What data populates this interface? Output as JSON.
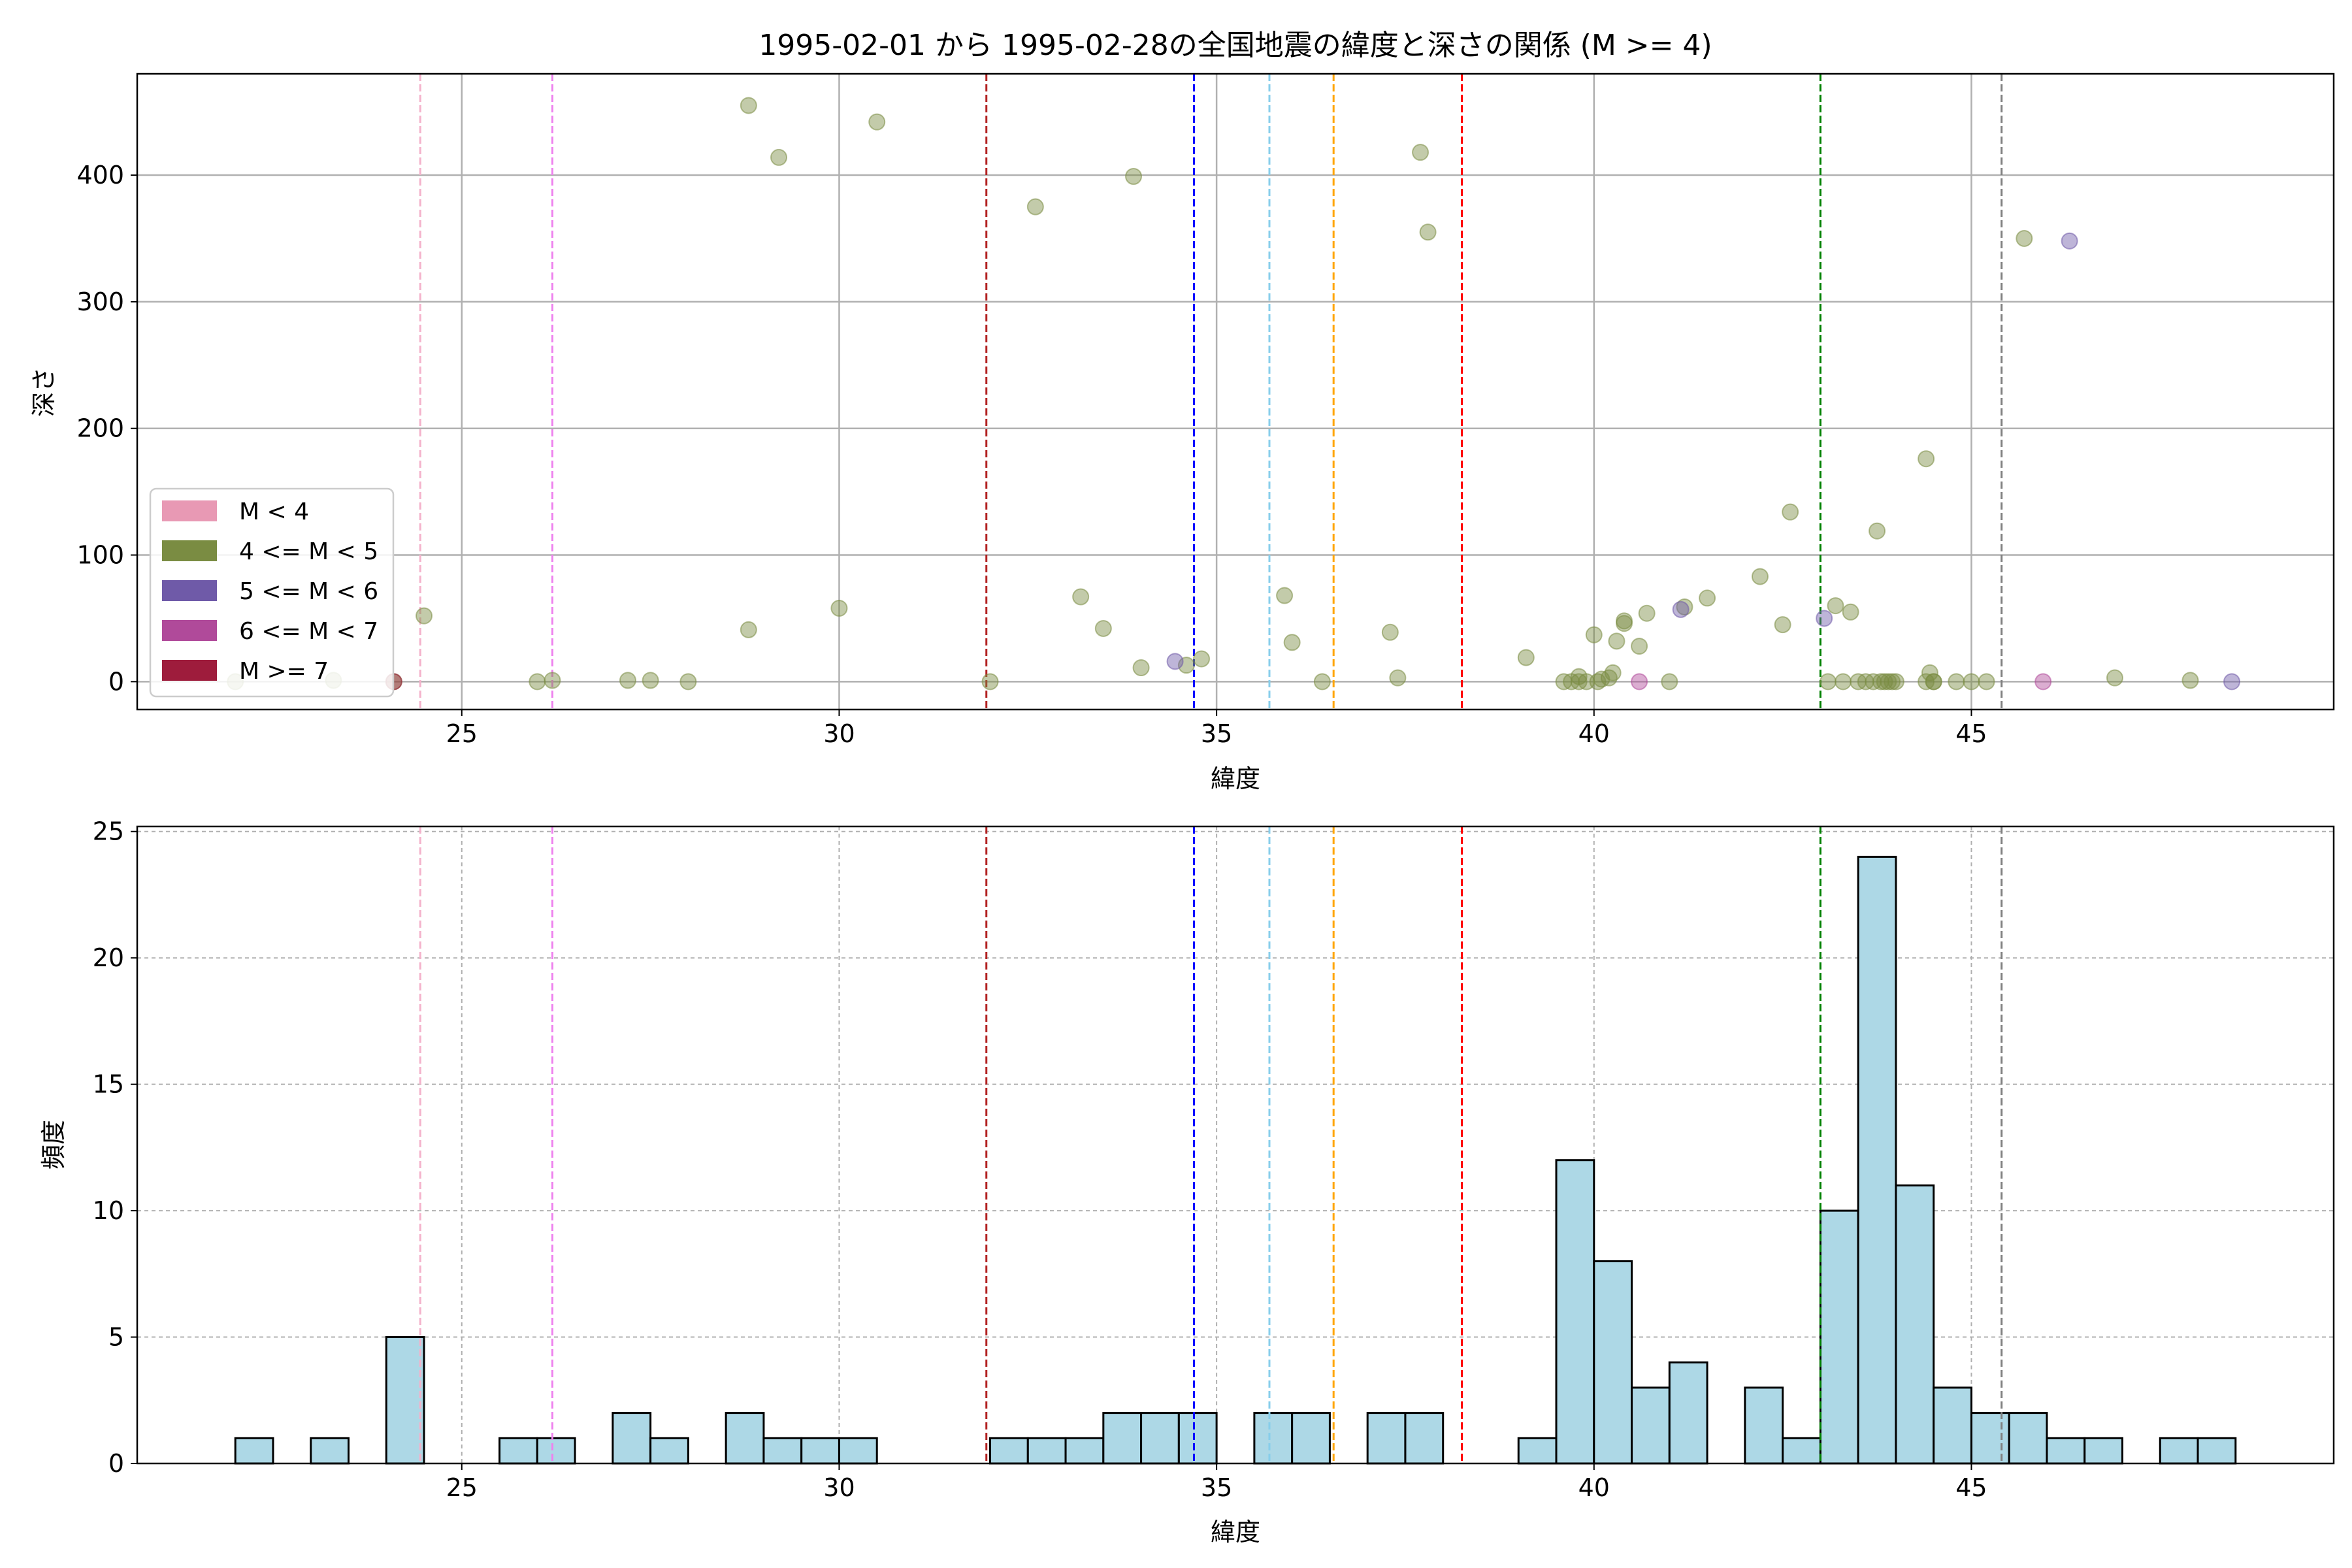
{
  "chart_data": [
    {
      "type": "scatter",
      "title": "1995-02-01 から 1995-02-28の全国地震の緯度と深さの関係 (M >= 4)",
      "xlabel": "緯度",
      "ylabel": "深さ",
      "xlim": [
        20.7,
        49.8
      ],
      "ylim": [
        480,
        -22
      ],
      "y_inverted": true,
      "xticks": [
        25,
        30,
        35,
        40,
        45
      ],
      "yticks": [
        0,
        100,
        200,
        300,
        400
      ],
      "grid": true,
      "legend_position": "lower-left",
      "legend": [
        {
          "label": "M < 4",
          "color": "#e899b4"
        },
        {
          "label": "4 <= M < 5",
          "color": "#7a8c42"
        },
        {
          "label": "5 <= M < 6",
          "color": "#6f5aa8"
        },
        {
          "label": "6 <= M < 7",
          "color": "#b04a9a"
        },
        {
          "label": "M >= 7",
          "color": "#9e1c3c"
        }
      ],
      "reference_lines": [
        {
          "x": 24.45,
          "color": "#f4b2cb"
        },
        {
          "x": 26.2,
          "color": "#ee82ee"
        },
        {
          "x": 31.95,
          "color": "#b22222"
        },
        {
          "x": 34.7,
          "color": "#0000ff"
        },
        {
          "x": 35.7,
          "color": "#87ceeb"
        },
        {
          "x": 36.55,
          "color": "#ffa500"
        },
        {
          "x": 38.25,
          "color": "#ff0000"
        },
        {
          "x": 43.0,
          "color": "#008000"
        },
        {
          "x": 45.4,
          "color": "#808080"
        }
      ],
      "series": [
        {
          "category": "4 <= M < 5",
          "color": "#7a8c42",
          "points": [
            [
              22.0,
              0
            ],
            [
              23.3,
              1
            ],
            [
              24.1,
              0
            ],
            [
              24.5,
              52
            ],
            [
              26.0,
              0
            ],
            [
              26.2,
              1
            ],
            [
              27.2,
              1
            ],
            [
              27.5,
              1
            ],
            [
              28.0,
              0
            ],
            [
              28.8,
              41
            ],
            [
              28.8,
              455
            ],
            [
              29.2,
              414
            ],
            [
              30.0,
              58
            ],
            [
              30.5,
              442
            ],
            [
              32.0,
              0
            ],
            [
              32.6,
              375
            ],
            [
              33.2,
              67
            ],
            [
              33.5,
              42
            ],
            [
              33.9,
              399
            ],
            [
              34.0,
              11
            ],
            [
              34.6,
              13
            ],
            [
              34.8,
              18
            ],
            [
              35.9,
              68
            ],
            [
              36.0,
              31
            ],
            [
              36.4,
              0
            ],
            [
              37.3,
              39
            ],
            [
              37.4,
              3
            ],
            [
              37.7,
              418
            ],
            [
              37.8,
              355
            ],
            [
              39.1,
              19
            ],
            [
              39.6,
              0
            ],
            [
              39.7,
              0
            ],
            [
              39.8,
              0
            ],
            [
              39.8,
              4
            ],
            [
              39.9,
              0
            ],
            [
              40.0,
              37
            ],
            [
              40.05,
              0
            ],
            [
              40.1,
              2
            ],
            [
              40.2,
              3
            ],
            [
              40.25,
              7
            ],
            [
              40.3,
              32
            ],
            [
              40.4,
              46
            ],
            [
              40.4,
              48
            ],
            [
              40.6,
              28
            ],
            [
              40.7,
              54
            ],
            [
              41.0,
              0
            ],
            [
              41.2,
              59
            ],
            [
              41.5,
              66
            ],
            [
              42.2,
              83
            ],
            [
              42.5,
              45
            ],
            [
              42.6,
              134
            ],
            [
              43.1,
              0
            ],
            [
              43.2,
              60
            ],
            [
              43.3,
              0
            ],
            [
              43.4,
              55
            ],
            [
              43.5,
              0
            ],
            [
              43.6,
              0
            ],
            [
              43.7,
              0
            ],
            [
              43.75,
              119
            ],
            [
              43.8,
              0
            ],
            [
              43.85,
              0
            ],
            [
              43.9,
              0
            ],
            [
              43.95,
              0
            ],
            [
              44.0,
              0
            ],
            [
              44.4,
              176
            ],
            [
              44.4,
              0
            ],
            [
              44.45,
              7
            ],
            [
              44.5,
              0
            ],
            [
              44.5,
              0
            ],
            [
              44.8,
              0
            ],
            [
              45.0,
              0
            ],
            [
              45.2,
              0
            ],
            [
              45.7,
              350
            ],
            [
              46.9,
              3
            ],
            [
              47.9,
              1
            ]
          ]
        },
        {
          "category": "5 <= M < 6",
          "color": "#6f5aa8",
          "points": [
            [
              34.45,
              16
            ],
            [
              41.15,
              57
            ],
            [
              43.05,
              50
            ],
            [
              46.3,
              348
            ],
            [
              48.45,
              0
            ]
          ]
        },
        {
          "category": "6 <= M < 7",
          "color": "#b04a9a",
          "points": [
            [
              40.6,
              0
            ],
            [
              45.95,
              0
            ]
          ]
        },
        {
          "category": "M >= 7",
          "color": "#9e1c3c",
          "points": [
            [
              24.1,
              0
            ]
          ]
        }
      ]
    },
    {
      "type": "bar",
      "xlabel": "緯度",
      "ylabel": "頻度",
      "xlim": [
        20.7,
        49.8
      ],
      "ylim": [
        0,
        25.2
      ],
      "xticks": [
        25,
        30,
        35,
        40,
        45
      ],
      "yticks": [
        0,
        5,
        10,
        15,
        20,
        25
      ],
      "grid": true,
      "bar_color": "#add8e6",
      "bin_width": 0.5,
      "bins": [
        {
          "x": 22.0,
          "count": 1
        },
        {
          "x": 23.0,
          "count": 1
        },
        {
          "x": 24.0,
          "count": 5
        },
        {
          "x": 25.5,
          "count": 1
        },
        {
          "x": 26.0,
          "count": 1
        },
        {
          "x": 27.0,
          "count": 2
        },
        {
          "x": 27.5,
          "count": 1
        },
        {
          "x": 28.5,
          "count": 2
        },
        {
          "x": 29.0,
          "count": 1
        },
        {
          "x": 29.5,
          "count": 1
        },
        {
          "x": 30.0,
          "count": 1
        },
        {
          "x": 32.0,
          "count": 1
        },
        {
          "x": 32.5,
          "count": 1
        },
        {
          "x": 33.0,
          "count": 1
        },
        {
          "x": 33.5,
          "count": 2
        },
        {
          "x": 34.0,
          "count": 2
        },
        {
          "x": 34.5,
          "count": 2
        },
        {
          "x": 35.5,
          "count": 2
        },
        {
          "x": 36.0,
          "count": 2
        },
        {
          "x": 37.0,
          "count": 2
        },
        {
          "x": 37.5,
          "count": 2
        },
        {
          "x": 39.0,
          "count": 1
        },
        {
          "x": 39.5,
          "count": 12
        },
        {
          "x": 40.0,
          "count": 8
        },
        {
          "x": 40.5,
          "count": 3
        },
        {
          "x": 41.0,
          "count": 4
        },
        {
          "x": 42.0,
          "count": 3
        },
        {
          "x": 42.5,
          "count": 1
        },
        {
          "x": 43.0,
          "count": 10
        },
        {
          "x": 43.5,
          "count": 24
        },
        {
          "x": 44.0,
          "count": 11
        },
        {
          "x": 44.5,
          "count": 3
        },
        {
          "x": 45.0,
          "count": 2
        },
        {
          "x": 45.5,
          "count": 2
        },
        {
          "x": 46.0,
          "count": 1
        },
        {
          "x": 46.5,
          "count": 1
        },
        {
          "x": 47.5,
          "count": 1
        },
        {
          "x": 48.0,
          "count": 1
        }
      ],
      "reference_lines": [
        {
          "x": 24.45,
          "color": "#f4b2cb"
        },
        {
          "x": 26.2,
          "color": "#ee82ee"
        },
        {
          "x": 31.95,
          "color": "#b22222"
        },
        {
          "x": 34.7,
          "color": "#0000ff"
        },
        {
          "x": 35.7,
          "color": "#87ceeb"
        },
        {
          "x": 36.55,
          "color": "#ffa500"
        },
        {
          "x": 38.25,
          "color": "#ff0000"
        },
        {
          "x": 43.0,
          "color": "#008000"
        },
        {
          "x": 45.4,
          "color": "#808080"
        }
      ]
    }
  ]
}
